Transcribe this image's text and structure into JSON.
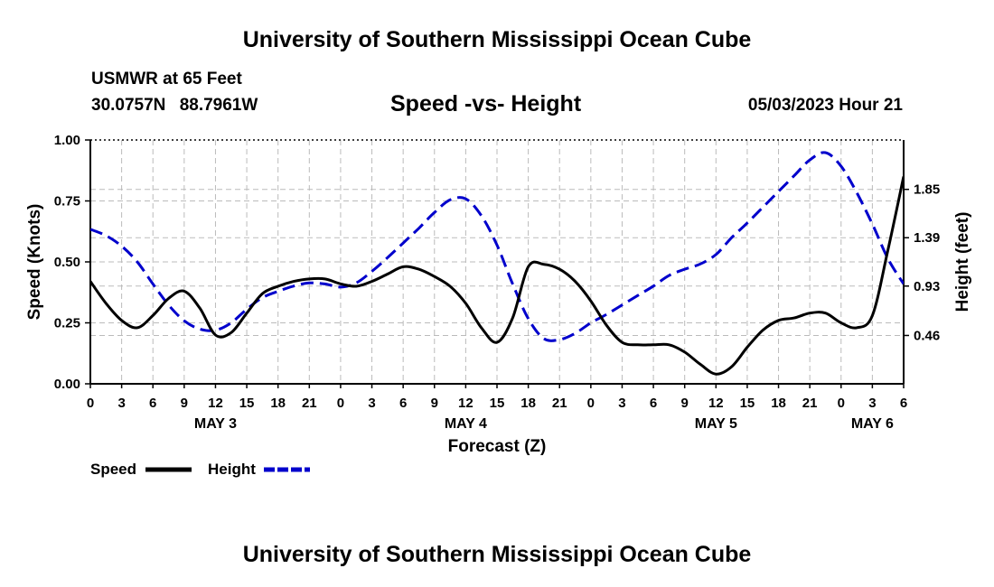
{
  "header": {
    "title_top": "University of Southern Mississippi Ocean Cube",
    "title_bottom": "University of Southern Mississippi Ocean Cube",
    "station": "USMWR at 65 Feet",
    "latitude": "30.0757N",
    "longitude": "88.7961W",
    "timestamp": "05/03/2023 Hour 21"
  },
  "chart_data": {
    "type": "line",
    "title": "Speed -vs- Height",
    "xlabel": "Forecast (Z)",
    "ylabel_left": "Speed (Knots)",
    "ylabel_right": "Height (feet)",
    "x_hours": [
      0,
      78
    ],
    "x_tick_labels": [
      "0",
      "3",
      "6",
      "9",
      "12",
      "15",
      "18",
      "21",
      "0",
      "3",
      "6",
      "9",
      "12",
      "15",
      "18",
      "21",
      "0",
      "3",
      "6",
      "9",
      "12",
      "15",
      "18",
      "21",
      "0",
      "3",
      "6"
    ],
    "day_labels": [
      {
        "label": "MAY 3",
        "hour": 12
      },
      {
        "label": "MAY 4",
        "hour": 36
      },
      {
        "label": "MAY 5",
        "hour": 60
      },
      {
        "label": "MAY 6",
        "hour": 75
      }
    ],
    "ylim_left": [
      0,
      1
    ],
    "y_ticks_left": [
      0,
      0.25,
      0.5,
      0.75,
      1
    ],
    "y_tick_labels_left": [
      "0.00",
      "0.25",
      "0.50",
      "0.75",
      "1.00"
    ],
    "ylim_right": [
      0,
      2.32
    ],
    "y_ticks_right": [
      0.46,
      0.93,
      1.39,
      1.85
    ],
    "y_tick_labels_right": [
      "0.46",
      "0.93",
      "1.39",
      "1.85"
    ],
    "grid": true,
    "series": [
      {
        "name": "Speed",
        "axis": "left",
        "color": "#000000",
        "dash": "solid",
        "x": [
          0,
          1.5,
          3,
          4.5,
          6,
          7.5,
          9,
          10.5,
          12,
          13.5,
          15,
          16.5,
          18,
          19.5,
          21,
          22.5,
          24,
          25.5,
          27,
          28.5,
          30,
          31.5,
          33,
          34.5,
          36,
          37.5,
          39,
          40.5,
          42,
          43.5,
          45,
          46.5,
          48,
          49.5,
          51,
          52.5,
          54,
          55.5,
          57,
          58.5,
          60,
          61.5,
          63,
          64.5,
          66,
          67.5,
          69,
          70.5,
          72,
          73.5,
          75,
          76.5,
          78
        ],
        "values": [
          0.42,
          0.33,
          0.26,
          0.23,
          0.28,
          0.35,
          0.38,
          0.31,
          0.2,
          0.21,
          0.29,
          0.37,
          0.4,
          0.42,
          0.43,
          0.43,
          0.41,
          0.4,
          0.42,
          0.45,
          0.48,
          0.47,
          0.44,
          0.4,
          0.33,
          0.23,
          0.17,
          0.27,
          0.48,
          0.49,
          0.47,
          0.42,
          0.34,
          0.24,
          0.17,
          0.16,
          0.16,
          0.16,
          0.13,
          0.08,
          0.04,
          0.07,
          0.15,
          0.22,
          0.26,
          0.27,
          0.29,
          0.29,
          0.25,
          0.23,
          0.28,
          0.55,
          0.85
        ]
      },
      {
        "name": "Height",
        "axis": "right",
        "color": "#0000cc",
        "dash": "dashed",
        "x": [
          0,
          1.5,
          3,
          4.5,
          6,
          7.5,
          9,
          10.5,
          12,
          13.5,
          15,
          16.5,
          18,
          19.5,
          21,
          22.5,
          24,
          25.5,
          27,
          28.5,
          30,
          31.5,
          33,
          34.5,
          36,
          37.5,
          39,
          40.5,
          42,
          43.5,
          45,
          46.5,
          48,
          49.5,
          51,
          52.5,
          54,
          55.5,
          57,
          58.5,
          60,
          61.5,
          63,
          64.5,
          66,
          67.5,
          69,
          70.5,
          72,
          73.5,
          75,
          76.5,
          78
        ],
        "values": [
          1.47,
          1.41,
          1.31,
          1.16,
          0.95,
          0.75,
          0.6,
          0.52,
          0.51,
          0.58,
          0.71,
          0.82,
          0.88,
          0.93,
          0.96,
          0.95,
          0.92,
          0.96,
          1.07,
          1.2,
          1.34,
          1.48,
          1.63,
          1.75,
          1.76,
          1.6,
          1.32,
          0.95,
          0.62,
          0.43,
          0.42,
          0.48,
          0.58,
          0.66,
          0.75,
          0.84,
          0.93,
          1.03,
          1.09,
          1.14,
          1.23,
          1.39,
          1.53,
          1.68,
          1.83,
          1.98,
          2.13,
          2.2,
          2.07,
          1.82,
          1.52,
          1.19,
          0.95
        ]
      }
    ],
    "legend": [
      {
        "label": "Speed",
        "color": "#000000",
        "dash": "solid"
      },
      {
        "label": "Height",
        "color": "#0000cc",
        "dash": "dashed"
      }
    ],
    "legend_position": "bottom-left"
  }
}
